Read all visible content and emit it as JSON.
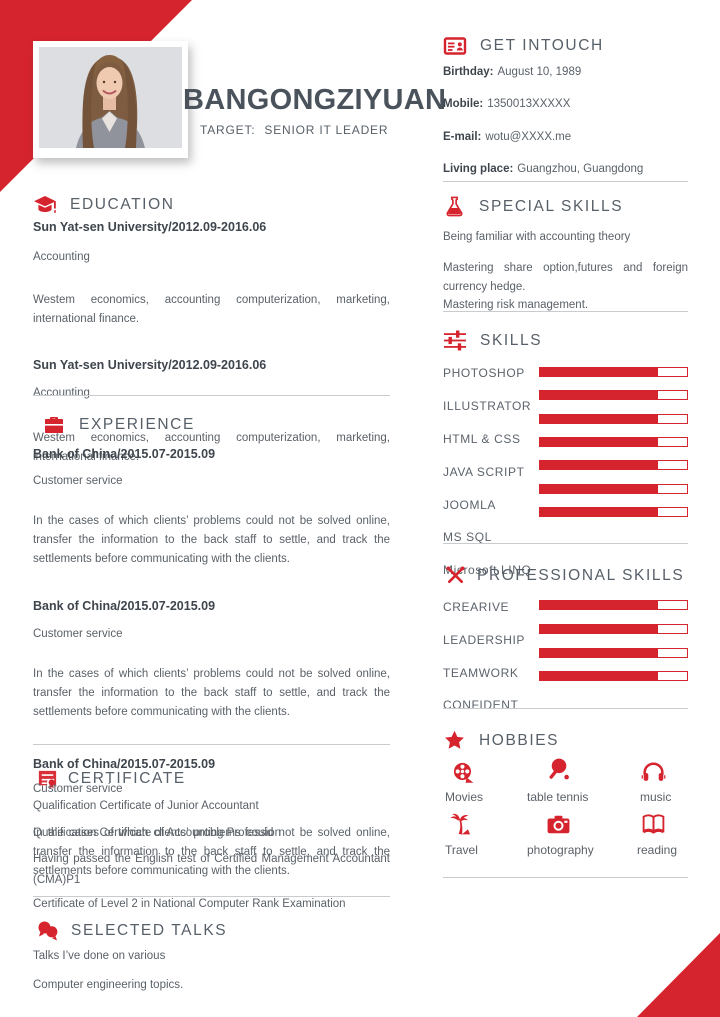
{
  "colors": {
    "accent": "#d6242e",
    "heading": "#575f68",
    "body_text": "#5a6168",
    "bold_text": "#3e454d",
    "divider": "#c9cbce"
  },
  "header": {
    "name": "BANGONGZIYUAN",
    "target_label": "TARGET:",
    "target_value": "SENIOR IT LEADER",
    "photo": "portrait-of-woman"
  },
  "left": {
    "education": {
      "title": "EDUCATION",
      "icon": "graduation-cap-icon",
      "entries": [
        {
          "school": "Sun Yat-sen University/2012.09-2016.06",
          "major": "Accounting",
          "desc": "Westem economics, accounting computerization, marketing, international finance."
        },
        {
          "school": "Sun Yat-sen University/2012.09-2016.06",
          "major": "Accounting"
        }
      ]
    },
    "experience": {
      "title": "EXPERIENCE",
      "icon": "briefcase-icon",
      "overlap_desc": "Westem economics, accounting computerization, marketing, international finance.",
      "entries": [
        {
          "company": "Bank of China/2015.07-2015.09",
          "role": "Customer service",
          "desc": "In the cases of which clients’ problems could not be solved online, transfer the information to the back staff to settle, and track the settlements before communicating with the clients."
        },
        {
          "company": "Bank of China/2015.07-2015.09",
          "role": "Customer service",
          "desc": "In the cases of which clients’ problems could not be solved online, transfer the information to the back staff to settle, and track the settlements before communicating with the clients."
        },
        {
          "company": "Bank of China/2015.07-2015.09",
          "role": "Customer service",
          "desc": "In the cases of which clients’ problems could not be solved online, transfer the information to the back staff to settle, and track the settlements before communicating with the clients."
        }
      ]
    },
    "certificate": {
      "title": "CERTIFICATE",
      "icon": "certificate-icon",
      "items": [
        "Qualification Certificate of Junior Accountant",
        "Qualification Certificate of Accounting Profession",
        "Having passed the English test of Certified Management Accountant (CMA)P1",
        "Certificate of Level 2 in National Computer Rank Examination"
      ]
    },
    "talks": {
      "title": "SELECTED TALKS",
      "icon": "chat-bubbles-icon",
      "lines": [
        "Talks I’ve done on various",
        "Computer engineering topics."
      ]
    }
  },
  "right": {
    "contact": {
      "title": "GET INTOUCH",
      "icon": "id-card-icon",
      "items": [
        {
          "label": "Birthday:",
          "value": "August 10, 1989"
        },
        {
          "label": "Mobile:",
          "value": "1350013XXXXX"
        },
        {
          "label": "E-mail:",
          "value": "wotu@XXXX.me"
        },
        {
          "label": "Living place:",
          "value": "Guangzhou, Guangdong"
        }
      ]
    },
    "special_skills": {
      "title": "SPECIAL SKILLS",
      "icon": "flask-icon",
      "lines": [
        "Being familiar with accounting theory",
        "Mastering share option,futures and foreign currency hedge.",
        "Mastering risk management."
      ]
    },
    "skills": {
      "title": "SKILLS",
      "icon": "sliders-icon",
      "items": [
        {
          "label": "PHOTOSHOP",
          "level": 80
        },
        {
          "label": "ILLUSTRATOR",
          "level": 80
        },
        {
          "label": "HTML & CSS",
          "level": 80
        },
        {
          "label": "JAVA SCRIPT",
          "level": 80
        },
        {
          "label": "JOOMLA",
          "level": 80
        },
        {
          "label": "MS SQL",
          "level": 80
        },
        {
          "label": "Microsoft LINQ",
          "level": 80
        }
      ]
    },
    "professional_skills": {
      "title": "PROFESSIONAL SKILLS",
      "icon": "crossed-tools-icon",
      "items": [
        {
          "label": "CREARIVE",
          "level": 80
        },
        {
          "label": "LEADERSHIP",
          "level": 80
        },
        {
          "label": "TEAMWORK",
          "level": 80
        },
        {
          "label": "CONFIDENT",
          "level": 80
        }
      ]
    },
    "hobbies": {
      "title": "HOBBIES",
      "icon": "star-icon",
      "items": [
        {
          "label": "Movies",
          "icon": "film-reel-icon"
        },
        {
          "label": "table tennis",
          "icon": "table-tennis-icon"
        },
        {
          "label": "music",
          "icon": "headphones-icon"
        },
        {
          "label": "Travel",
          "icon": "palm-tree-icon"
        },
        {
          "label": "photography",
          "icon": "camera-icon"
        },
        {
          "label": "reading",
          "icon": "open-book-icon"
        }
      ]
    }
  }
}
